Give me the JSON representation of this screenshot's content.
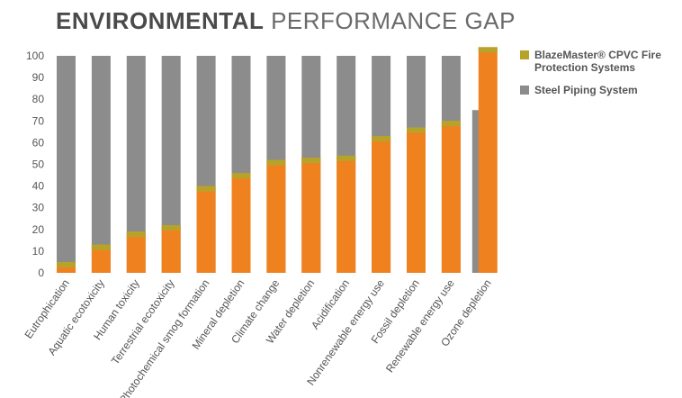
{
  "title": {
    "bold": "ENVIRONMENTAL",
    "light": "PERFORMANCE GAP"
  },
  "legend": [
    {
      "label": "BlazeMaster® CPVC Fire Protection Systems",
      "color": "#b8a32a"
    },
    {
      "label": "Steel Piping System",
      "color": "#8c8c8c"
    }
  ],
  "colors": {
    "steel": "#8c8c8c",
    "cpvc_fill": "#f0811f",
    "cpvc_cap": "#b8a32a",
    "axis_text": "#555555"
  },
  "chart_data": {
    "type": "bar",
    "title": "ENVIRONMENTAL PERFORMANCE GAP",
    "xlabel": "",
    "ylabel": "",
    "ylim": [
      0,
      100
    ],
    "yticks": [
      0,
      10,
      20,
      30,
      40,
      50,
      60,
      70,
      80,
      90,
      100
    ],
    "categories": [
      "Eutrophication",
      "Aquatic ecotoxicity",
      "Human toxicity",
      "Terrestrial ecotoxicity",
      "Photochemical smog formation",
      "Mineral depletion",
      "Climate change",
      "Water depletion",
      "Acidification",
      "Nonrenewable energy use",
      "Fossil depletion",
      "Renewable energy use",
      "Ozone depletion"
    ],
    "series": [
      {
        "name": "Steel Piping System",
        "values": [
          100,
          100,
          100,
          100,
          100,
          100,
          100,
          100,
          100,
          100,
          100,
          100,
          75
        ]
      },
      {
        "name": "BlazeMaster® CPVC Fire Protection Systems",
        "values": [
          5,
          13,
          19,
          22,
          40,
          46,
          52,
          53,
          54,
          63,
          67,
          70,
          104
        ]
      }
    ],
    "legend_position": "right"
  }
}
